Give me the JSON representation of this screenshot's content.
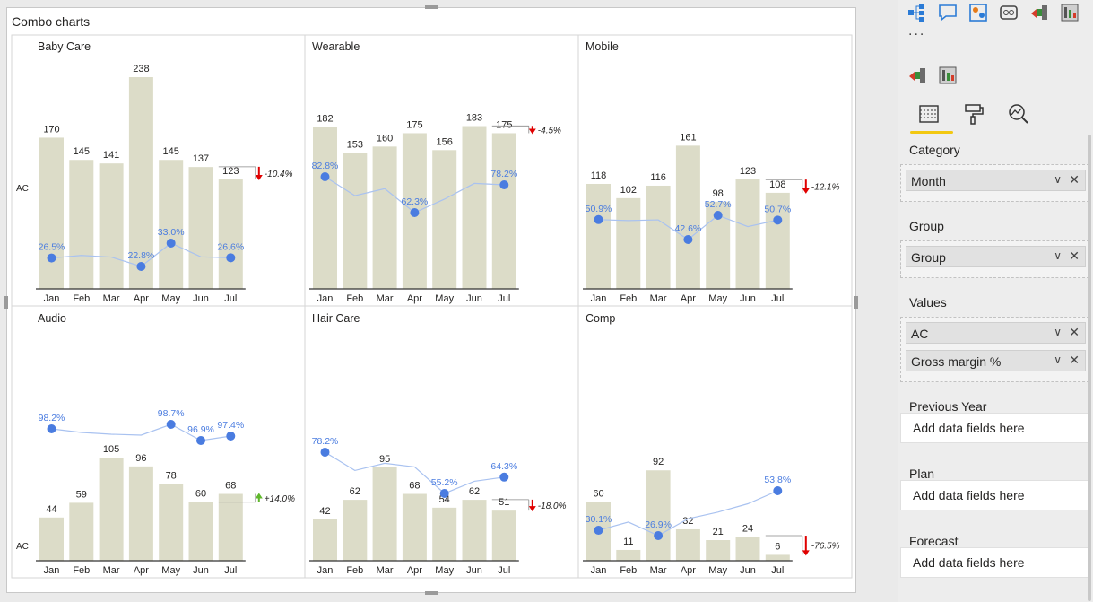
{
  "visual": {
    "title": "Combo charts"
  },
  "chart_data": [
    {
      "type": "bar",
      "title": "Baby Care",
      "ylabel": "AC",
      "categories": [
        "Jan",
        "Feb",
        "Mar",
        "Apr",
        "May",
        "Jun",
        "Jul"
      ],
      "series": [
        {
          "name": "AC",
          "values": [
            170,
            145,
            141,
            238,
            145,
            137,
            123
          ]
        },
        {
          "name": "Gross margin %",
          "type": "line",
          "values": [
            26.5,
            27.6,
            26.9,
            22.8,
            33.0,
            27.0,
            26.6
          ],
          "labels": [
            "26.5%",
            "",
            "",
            "22.8%",
            "33.0%",
            "",
            "26.6%"
          ]
        }
      ],
      "variance": {
        "text": "-10.4%",
        "direction": "down"
      }
    },
    {
      "type": "bar",
      "title": "Wearable",
      "categories": [
        "Jan",
        "Feb",
        "Mar",
        "Apr",
        "May",
        "Jun",
        "Jul"
      ],
      "series": [
        {
          "name": "AC",
          "values": [
            182,
            153,
            160,
            175,
            156,
            183,
            175
          ]
        },
        {
          "name": "Gross margin %",
          "type": "line",
          "values": [
            82.8,
            72.0,
            76.0,
            62.3,
            70.0,
            79.0,
            78.2
          ],
          "labels": [
            "82.8%",
            "",
            "",
            "62.3%",
            "",
            "",
            "78.2%"
          ]
        }
      ],
      "variance": {
        "text": "-4.5%",
        "direction": "down"
      }
    },
    {
      "type": "bar",
      "title": "Mobile",
      "categories": [
        "Jan",
        "Feb",
        "Mar",
        "Apr",
        "May",
        "Jun",
        "Jul"
      ],
      "series": [
        {
          "name": "AC",
          "values": [
            118,
            102,
            116,
            161,
            98,
            123,
            108
          ]
        },
        {
          "name": "Gross margin %",
          "type": "line",
          "values": [
            50.9,
            50.5,
            50.8,
            42.6,
            52.7,
            48.0,
            50.7
          ],
          "labels": [
            "50.9%",
            "",
            "",
            "42.6%",
            "52.7%",
            "",
            "50.7%"
          ]
        }
      ],
      "variance": {
        "text": "-12.1%",
        "direction": "down"
      }
    },
    {
      "type": "bar",
      "title": "Audio",
      "ylabel": "AC",
      "categories": [
        "Jan",
        "Feb",
        "Mar",
        "Apr",
        "May",
        "Jun",
        "Jul"
      ],
      "series": [
        {
          "name": "AC",
          "values": [
            44,
            59,
            105,
            96,
            78,
            60,
            68
          ]
        },
        {
          "name": "Gross margin %",
          "type": "line",
          "values": [
            98.2,
            97.8,
            97.6,
            97.5,
            98.7,
            96.9,
            97.4
          ],
          "labels": [
            "98.2%",
            "",
            "",
            "",
            "98.7%",
            "96.9%",
            "97.4%"
          ]
        }
      ],
      "variance": {
        "text": "+14.0%",
        "direction": "up"
      }
    },
    {
      "type": "bar",
      "title": "Hair Care",
      "categories": [
        "Jan",
        "Feb",
        "Mar",
        "Apr",
        "May",
        "Jun",
        "Jul"
      ],
      "series": [
        {
          "name": "AC",
          "values": [
            42,
            62,
            95,
            68,
            54,
            62,
            51
          ]
        },
        {
          "name": "Gross margin %",
          "type": "line",
          "values": [
            78.2,
            68.0,
            72.0,
            70.0,
            55.2,
            62.0,
            64.3
          ],
          "labels": [
            "78.2%",
            "",
            "",
            "",
            "55.2%",
            "",
            "64.3%"
          ]
        }
      ],
      "variance": {
        "text": "-18.0%",
        "direction": "down"
      }
    },
    {
      "type": "bar",
      "title": "Comp",
      "categories": [
        "Jan",
        "Feb",
        "Mar",
        "Apr",
        "May",
        "Jun",
        "Jul"
      ],
      "series": [
        {
          "name": "AC",
          "values": [
            60,
            11,
            92,
            32,
            21,
            24,
            6
          ]
        },
        {
          "name": "Gross margin %",
          "type": "line",
          "values": [
            30.1,
            35.0,
            26.9,
            37.0,
            41.0,
            46.0,
            53.8
          ],
          "labels": [
            "30.1%",
            "",
            "26.9%",
            "",
            "",
            "",
            "53.8%"
          ]
        }
      ],
      "variance": {
        "text": "-76.5%",
        "direction": "down"
      }
    }
  ],
  "colors": {
    "bar": "#dcdcc8",
    "line": "#a9c2f0",
    "dot": "#4a7ce0",
    "down_arrow": "#e00000",
    "up_arrow": "#5fb82b",
    "accent": "#f2c811"
  },
  "pane": {
    "visual_icons": [
      "decomposition-tree-icon",
      "qa-icon",
      "key-influencers-icon",
      "paginated-visual-icon",
      "zebra-bi-charts-icon",
      "zebra-bi-tables-icon"
    ],
    "more": "...",
    "custom_icons": [
      "zebra-bi-charts-icon",
      "zebra-bi-tables-icon"
    ],
    "tabs": [
      "fields-tab-icon",
      "format-tab-icon",
      "analytics-tab-icon"
    ],
    "sections": [
      {
        "label": "Category",
        "fields": [
          "Month"
        ]
      },
      {
        "label": "Group",
        "fields": [
          "Group"
        ]
      },
      {
        "label": "Values",
        "fields": [
          "AC",
          "Gross margin %"
        ]
      },
      {
        "label": "Previous Year",
        "placeholder": "Add data fields here"
      },
      {
        "label": "Plan",
        "placeholder": "Add data fields here"
      },
      {
        "label": "Forecast",
        "placeholder": "Add data fields here"
      }
    ]
  }
}
